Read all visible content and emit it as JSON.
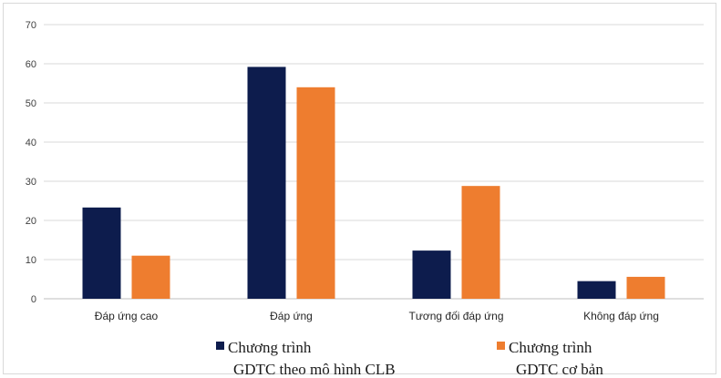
{
  "chart_data": {
    "type": "bar",
    "categories": [
      "Đáp ứng cao",
      "Đáp ứng",
      "Tương đối đáp ứng",
      "Không đáp ứng"
    ],
    "series": [
      {
        "name": "Chương trình GDTC theo mô hình CLB",
        "legend_lines": [
          "Chương trình",
          "GDTC theo mô hình CLB"
        ],
        "color": "#0d1c4d",
        "values": [
          23.3,
          59.2,
          12.3,
          4.5
        ]
      },
      {
        "name": "Chương trình GDTC cơ bản",
        "legend_lines": [
          "Chương trình",
          "GDTC cơ bản"
        ],
        "color": "#ee7d2f",
        "values": [
          11,
          54,
          28.8,
          5.6
        ]
      }
    ],
    "ylim": [
      0,
      70
    ],
    "yticks": [
      0,
      10,
      20,
      30,
      40,
      50,
      60,
      70
    ],
    "grid": true,
    "legend_position": "bottom",
    "title": "",
    "xlabel": "",
    "ylabel": ""
  }
}
